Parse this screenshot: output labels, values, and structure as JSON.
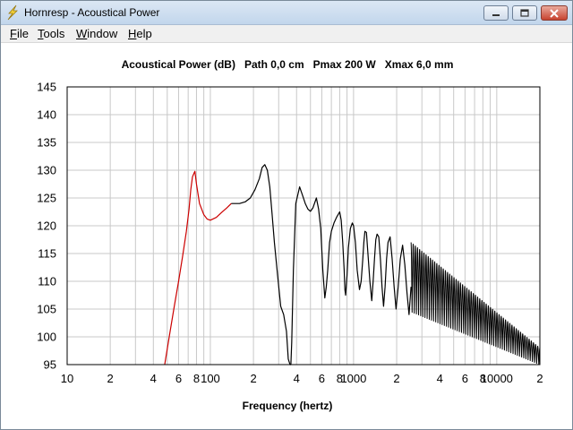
{
  "window": {
    "title": "Hornresp - Acoustical Power",
    "app_icon": "hornresp-icon",
    "buttons": {
      "minimize": "minimize-icon",
      "maximize": "maximize-icon",
      "close": "close-icon"
    }
  },
  "menu": [
    {
      "mnemonic": "F",
      "rest": "ile"
    },
    {
      "mnemonic": "T",
      "rest": "ools"
    },
    {
      "mnemonic": "W",
      "rest": "indow"
    },
    {
      "mnemonic": "H",
      "rest": "elp"
    }
  ],
  "chart_data": {
    "type": "line",
    "title": "Acoustical Power (dB)   Path 0,0 cm   Pmax 200 W   Xmax 6,0 mm",
    "xlabel": "Frequency (hertz)",
    "ylabel": "",
    "xscale": "log",
    "xlim": [
      10,
      20000
    ],
    "ylim": [
      95,
      145
    ],
    "grid": true,
    "legend": "none",
    "y_ticks": [
      145,
      140,
      135,
      130,
      125,
      120,
      115,
      110,
      105,
      100,
      95
    ],
    "x_ticks": [
      {
        "value": 10,
        "label": "10"
      },
      {
        "value": 20,
        "label": "2"
      },
      {
        "value": 40,
        "label": "4"
      },
      {
        "value": 60,
        "label": "6"
      },
      {
        "value": 80,
        "label": "8"
      },
      {
        "value": 100,
        "label": "100"
      },
      {
        "value": 200,
        "label": "2"
      },
      {
        "value": 400,
        "label": "4"
      },
      {
        "value": 600,
        "label": "6"
      },
      {
        "value": 800,
        "label": "8"
      },
      {
        "value": 1000,
        "label": "1000"
      },
      {
        "value": 2000,
        "label": "2"
      },
      {
        "value": 4000,
        "label": "4"
      },
      {
        "value": 6000,
        "label": "6"
      },
      {
        "value": 8000,
        "label": "8"
      },
      {
        "value": 10000,
        "label": "10000"
      },
      {
        "value": 20000,
        "label": "2"
      }
    ],
    "colors": {
      "excursion_limited": "#cc0000",
      "power": "#000000",
      "grid": "#c8c8c8",
      "frame": "#000000"
    },
    "series": [
      {
        "color": "#cc0000",
        "x": [
          48,
          52,
          56,
          60,
          64,
          68,
          71,
          73,
          75,
          77,
          78,
          80,
          84,
          90,
          95,
          100,
          110,
          120,
          130,
          140
        ],
        "y": [
          95,
          100.5,
          105.5,
          110,
          114.5,
          119,
          123,
          126.5,
          128.8,
          129.5,
          129.8,
          127.5,
          124,
          122,
          121.2,
          121,
          121.5,
          122.4,
          123.2,
          124
        ]
      },
      {
        "color": "#000000",
        "x": [
          140,
          150,
          160,
          175,
          190,
          205,
          220,
          230,
          240,
          250,
          260,
          270,
          280,
          295,
          310,
          325,
          340,
          350,
          360,
          365,
          370,
          380,
          395,
          420,
          440,
          460,
          480,
          500,
          520,
          550,
          570,
          590,
          610,
          630,
          645,
          660,
          680,
          700,
          730,
          760,
          800,
          820,
          840,
          860,
          870,
          880,
          900,
          920,
          950,
          980,
          1000,
          1030,
          1060,
          1100,
          1130,
          1160,
          1180,
          1200,
          1230,
          1260,
          1300,
          1340,
          1370,
          1400,
          1430,
          1460,
          1500,
          1540,
          1580,
          1620,
          1660,
          1700,
          1740,
          1800,
          1860,
          1920,
          1980,
          2050,
          2120,
          2200,
          2280,
          2360,
          2440,
          2520
        ],
        "y": [
          124,
          124,
          124,
          124.3,
          125,
          126.5,
          128.5,
          130.5,
          131,
          130,
          127,
          122,
          117,
          111,
          105.5,
          104,
          101,
          96,
          95,
          95,
          99,
          112,
          124,
          127,
          125.5,
          124,
          123,
          122.6,
          123.2,
          125,
          123,
          119.5,
          112,
          107,
          109,
          112,
          117,
          119,
          120.5,
          121.5,
          122.5,
          121,
          117,
          112,
          108.5,
          107.5,
          111,
          116,
          119.5,
          120.5,
          120,
          117,
          112,
          108.5,
          110,
          114,
          117,
          119,
          118.8,
          115,
          110,
          106.5,
          110,
          114,
          117.5,
          118.5,
          118,
          114,
          109,
          105.5,
          109,
          114,
          117,
          118,
          114,
          109,
          105,
          109,
          114,
          116.5,
          113,
          108,
          104,
          109
        ]
      }
    ],
    "hf_comb": {
      "color": "#000000",
      "x_start": 2520,
      "x_end": 20000,
      "cycles": 60,
      "peak_start": 117,
      "peak_end": 98,
      "trough_start": 104.5,
      "trough_end": 95,
      "decay": "linear-in-log-frequency"
    }
  }
}
